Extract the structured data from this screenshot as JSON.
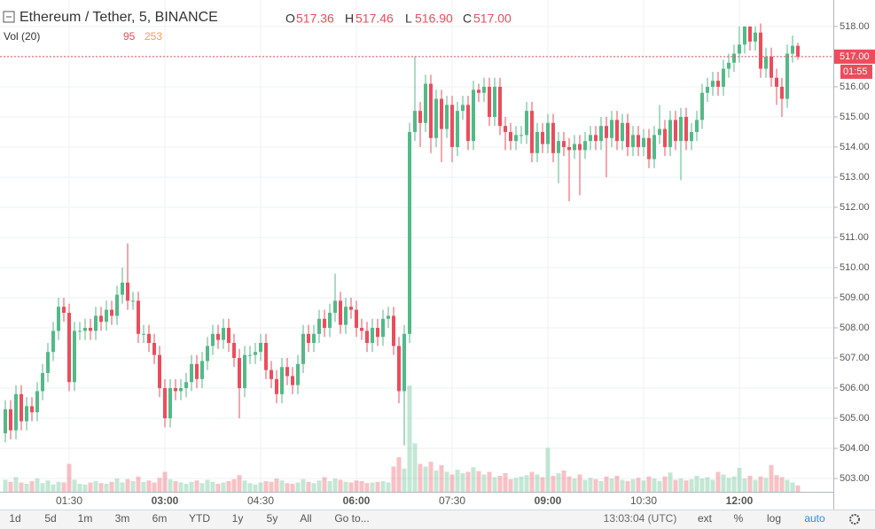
{
  "header": {
    "symbol": "Ethereum / Tether, 5, BINANCE",
    "open_label": "O",
    "open": "517.36",
    "high_label": "H",
    "high": "517.46",
    "low_label": "L",
    "low": "516.90",
    "close_label": "C",
    "close": "517.00",
    "volume_title": "Vol (20)",
    "volume_last": "95",
    "volume_ma": "253"
  },
  "toolbar": [
    "1d",
    "5d",
    "1m",
    "3m",
    "6m",
    "YTD",
    "1y",
    "5y",
    "All",
    "Go to...",
    "13:03:04 (UTC)",
    "ext",
    "%",
    "log",
    "auto"
  ],
  "chart_data": {
    "type": "candlestick",
    "x": [
      "00:30",
      "00:35",
      "00:40",
      "00:45",
      "00:50",
      "00:55",
      "01:00",
      "01:05",
      "01:10",
      "01:15",
      "01:20",
      "01:25",
      "01:30",
      "01:35",
      "01:40",
      "01:45",
      "01:50",
      "01:55",
      "02:00",
      "02:05",
      "02:10",
      "02:15",
      "02:20",
      "02:25",
      "02:30",
      "02:35",
      "02:40",
      "02:45",
      "02:50",
      "02:55",
      "03:00",
      "03:05",
      "03:10",
      "03:15",
      "03:20",
      "03:25",
      "03:30",
      "03:35",
      "03:40",
      "03:45",
      "03:50",
      "03:55",
      "04:00",
      "04:05",
      "04:10",
      "04:15",
      "04:20",
      "04:25",
      "04:30",
      "04:35",
      "04:40",
      "04:45",
      "04:50",
      "04:55",
      "05:00",
      "05:05",
      "05:10",
      "05:15",
      "05:20",
      "05:25",
      "05:30",
      "05:35",
      "05:40",
      "05:45",
      "05:50",
      "05:55",
      "06:00",
      "06:05",
      "06:10",
      "06:15",
      "06:20",
      "06:25",
      "06:30",
      "06:35",
      "06:40",
      "06:45",
      "06:50",
      "06:55",
      "07:00",
      "07:05",
      "07:10",
      "07:15",
      "07:20",
      "07:25",
      "07:30",
      "07:35",
      "07:40",
      "07:45",
      "07:50",
      "07:55",
      "08:00",
      "08:05",
      "08:10",
      "08:15",
      "08:20",
      "08:25",
      "08:30",
      "08:35",
      "08:40",
      "08:45",
      "08:50",
      "08:55",
      "09:00",
      "09:05",
      "09:10",
      "09:15",
      "09:20",
      "09:25",
      "09:30",
      "09:35",
      "09:40",
      "09:45",
      "09:50",
      "09:55",
      "10:00",
      "10:05",
      "10:10",
      "10:15",
      "10:20",
      "10:25",
      "10:30",
      "10:35",
      "10:40",
      "10:45",
      "10:50",
      "10:55",
      "11:00",
      "11:05",
      "11:10",
      "11:15",
      "11:20",
      "11:25",
      "11:30",
      "11:35",
      "11:40",
      "11:45",
      "11:50",
      "11:55",
      "12:00",
      "12:05",
      "12:10",
      "12:15",
      "12:20",
      "12:25",
      "12:30",
      "12:35",
      "12:40",
      "12:45",
      "12:50",
      "12:55"
    ],
    "open": [
      504.5,
      505.3,
      504.6,
      505.8,
      504.9,
      505.4,
      505.2,
      505.9,
      506.5,
      507.2,
      507.9,
      508.7,
      508.5,
      506.2,
      507.9,
      507.9,
      508.0,
      507.9,
      508.4,
      508.2,
      508.6,
      508.4,
      509.1,
      509.5,
      508.9,
      508.9,
      507.8,
      507.8,
      507.5,
      507.1,
      506.0,
      505.0,
      506.0,
      505.9,
      506.0,
      506.2,
      506.8,
      506.3,
      506.9,
      507.4,
      507.8,
      507.6,
      508.0,
      507.5,
      507.0,
      506.0,
      507.1,
      507.1,
      507.2,
      507.5,
      506.6,
      506.3,
      505.8,
      506.7,
      506.4,
      506.1,
      506.8,
      507.8,
      507.5,
      507.8,
      508.3,
      508.0,
      508.5,
      508.9,
      508.1,
      508.7,
      508.6,
      508.0,
      507.9,
      507.5,
      508.0,
      507.7,
      508.3,
      508.4,
      507.4,
      505.9,
      507.8,
      514.5,
      515.2,
      514.8,
      516.1,
      514.3,
      515.6,
      514.6,
      515.4,
      514.0,
      515.2,
      515.4,
      514.2,
      515.9,
      515.8,
      516.0,
      515.0,
      516.0,
      514.7,
      514.5,
      514.2,
      514.4,
      514.4,
      515.2,
      513.8,
      514.5,
      514.1,
      514.8,
      513.8,
      514.2,
      514.0,
      513.9,
      514.1,
      513.9,
      514.2,
      514.4,
      514.2,
      514.7,
      514.3,
      514.9,
      514.2,
      514.8,
      514.0,
      514.4,
      514.0,
      514.3,
      513.6,
      514.4,
      514.6,
      514.0,
      514.9,
      514.2,
      515.0,
      514.2,
      514.5,
      514.9,
      515.8,
      516.0,
      516.2,
      516.0,
      516.6,
      516.8,
      517.1,
      517.4,
      518.0,
      517.5,
      517.8,
      516.6,
      517.0,
      516.3,
      516.0,
      515.6,
      517.1,
      517.36
    ],
    "high": [
      505.6,
      505.6,
      506.1,
      506.1,
      505.7,
      505.7,
      506.2,
      506.8,
      507.5,
      508.2,
      509.0,
      509.0,
      508.8,
      508.2,
      508.2,
      508.3,
      508.3,
      508.7,
      508.7,
      508.9,
      508.9,
      509.4,
      510.0,
      510.8,
      509.2,
      509.2,
      508.1,
      508.1,
      507.8,
      507.4,
      506.3,
      506.3,
      506.3,
      506.3,
      506.5,
      507.1,
      507.1,
      507.2,
      507.7,
      508.1,
      508.1,
      508.3,
      508.3,
      507.8,
      507.3,
      507.4,
      507.4,
      507.5,
      507.8,
      507.8,
      506.9,
      506.6,
      507.0,
      507.0,
      506.7,
      507.1,
      508.1,
      508.1,
      508.1,
      508.6,
      508.6,
      508.8,
      509.8,
      509.2,
      509.0,
      509.0,
      508.9,
      508.3,
      508.2,
      508.3,
      508.3,
      508.6,
      508.7,
      508.7,
      507.7,
      508.1,
      514.8,
      517.0,
      515.5,
      516.4,
      516.4,
      515.9,
      515.9,
      515.7,
      515.7,
      515.5,
      515.7,
      515.7,
      516.2,
      516.1,
      516.3,
      516.3,
      516.3,
      516.3,
      515.0,
      514.8,
      514.7,
      514.7,
      515.5,
      515.5,
      514.8,
      514.8,
      515.1,
      515.1,
      514.5,
      514.5,
      514.3,
      514.4,
      514.4,
      514.5,
      514.7,
      514.7,
      515.0,
      515.0,
      515.2,
      515.2,
      515.1,
      515.1,
      514.7,
      514.7,
      514.6,
      514.6,
      514.7,
      515.4,
      514.9,
      515.2,
      515.2,
      515.3,
      515.3,
      514.8,
      515.2,
      516.1,
      516.3,
      516.5,
      516.5,
      516.9,
      517.1,
      517.4,
      518.0,
      518.0,
      518.0,
      518.0,
      518.1,
      517.3,
      517.3,
      516.6,
      516.3,
      517.4,
      517.7,
      517.46
    ],
    "low": [
      504.2,
      504.3,
      504.3,
      504.6,
      504.6,
      504.9,
      504.9,
      505.6,
      506.2,
      506.9,
      507.6,
      508.2,
      505.9,
      505.9,
      507.6,
      507.6,
      507.6,
      507.6,
      507.9,
      507.9,
      508.1,
      508.1,
      508.8,
      508.6,
      508.6,
      507.5,
      507.5,
      507.2,
      506.8,
      505.7,
      504.7,
      504.7,
      505.6,
      505.6,
      505.7,
      505.9,
      506.0,
      506.0,
      506.6,
      507.1,
      507.3,
      507.3,
      507.2,
      506.7,
      505.0,
      505.7,
      506.8,
      506.8,
      506.9,
      506.3,
      506.0,
      505.5,
      505.5,
      506.1,
      505.8,
      505.8,
      506.5,
      507.2,
      507.2,
      507.5,
      507.7,
      507.7,
      508.2,
      507.8,
      507.8,
      508.3,
      507.7,
      507.6,
      507.2,
      507.2,
      507.4,
      507.4,
      508.0,
      507.1,
      505.5,
      504.1,
      507.5,
      514.2,
      514.0,
      514.5,
      513.8,
      514.0,
      513.5,
      514.3,
      513.5,
      513.7,
      514.9,
      513.9,
      513.9,
      515.5,
      515.5,
      514.7,
      514.7,
      514.4,
      513.9,
      513.9,
      513.9,
      514.1,
      514.1,
      513.5,
      513.5,
      513.8,
      513.8,
      513.5,
      512.8,
      513.7,
      512.2,
      513.6,
      512.4,
      513.6,
      513.9,
      513.9,
      513.9,
      513.0,
      514.0,
      513.9,
      513.9,
      513.7,
      513.7,
      513.7,
      513.7,
      513.3,
      513.3,
      514.1,
      513.7,
      513.7,
      513.9,
      512.9,
      513.9,
      513.9,
      514.2,
      514.6,
      515.5,
      515.7,
      515.7,
      515.7,
      516.3,
      516.5,
      516.8,
      517.1,
      517.2,
      517.2,
      516.3,
      516.3,
      516.0,
      515.4,
      515.0,
      515.3,
      516.8,
      516.9
    ],
    "close": [
      505.3,
      504.6,
      505.8,
      504.9,
      505.4,
      505.2,
      505.9,
      506.5,
      507.2,
      507.9,
      508.7,
      508.5,
      506.2,
      507.9,
      507.9,
      508.0,
      507.9,
      508.4,
      508.2,
      508.6,
      508.4,
      509.1,
      509.5,
      508.9,
      508.9,
      507.8,
      507.8,
      507.5,
      507.1,
      506.0,
      505.0,
      506.0,
      505.9,
      506.0,
      506.2,
      506.8,
      506.3,
      506.9,
      507.4,
      507.8,
      507.6,
      508.0,
      507.5,
      507.0,
      506.0,
      507.1,
      507.1,
      507.2,
      507.5,
      506.6,
      506.3,
      505.8,
      506.7,
      506.4,
      506.1,
      506.8,
      507.8,
      507.5,
      507.8,
      508.3,
      508.0,
      508.5,
      508.9,
      508.1,
      508.7,
      508.6,
      508.0,
      507.9,
      507.5,
      508.0,
      507.7,
      508.3,
      508.4,
      507.4,
      505.9,
      507.8,
      514.5,
      515.2,
      514.8,
      516.1,
      514.3,
      515.6,
      514.6,
      515.4,
      514.0,
      515.2,
      515.4,
      514.2,
      515.9,
      515.8,
      516.0,
      515.0,
      516.0,
      514.7,
      514.5,
      514.2,
      514.4,
      514.4,
      515.2,
      513.8,
      514.5,
      514.1,
      514.8,
      513.8,
      514.2,
      514.0,
      513.9,
      514.1,
      513.9,
      514.2,
      514.4,
      514.2,
      514.7,
      514.3,
      514.9,
      514.2,
      514.8,
      514.0,
      514.4,
      514.0,
      514.3,
      513.6,
      514.4,
      514.6,
      514.0,
      514.9,
      514.2,
      515.0,
      514.2,
      514.5,
      514.9,
      515.8,
      516.0,
      516.2,
      516.0,
      516.6,
      516.8,
      517.1,
      517.4,
      518.0,
      517.5,
      517.8,
      516.6,
      517.0,
      516.3,
      516.0,
      515.6,
      517.1,
      517.36,
      517.0
    ],
    "volume": [
      180,
      150,
      220,
      140,
      120,
      160,
      200,
      130,
      170,
      110,
      150,
      140,
      420,
      180,
      120,
      110,
      140,
      160,
      130,
      120,
      150,
      200,
      140,
      190,
      160,
      230,
      150,
      170,
      140,
      210,
      300,
      190,
      160,
      140,
      120,
      150,
      170,
      130,
      180,
      150,
      120,
      140,
      160,
      190,
      250,
      170,
      130,
      110,
      140,
      160,
      150,
      200,
      170,
      130,
      120,
      140,
      190,
      150,
      130,
      170,
      220,
      160,
      200,
      180,
      150,
      140,
      170,
      160,
      130,
      140,
      150,
      160,
      140,
      380,
      520,
      350,
      1600,
      730,
      420,
      380,
      450,
      320,
      400,
      300,
      260,
      330,
      280,
      300,
      370,
      310,
      260,
      300,
      220,
      240,
      280,
      190,
      210,
      230,
      250,
      300,
      260,
      220,
      660,
      240,
      280,
      320,
      230,
      200,
      260,
      180,
      210,
      190,
      160,
      230,
      200,
      240,
      180,
      160,
      190,
      210,
      170,
      230,
      200,
      160,
      230,
      290,
      180,
      200,
      170,
      190,
      240,
      200,
      220,
      180,
      300,
      260,
      210,
      230,
      360,
      200,
      240,
      180,
      230,
      210,
      400,
      250,
      220,
      180,
      140,
      95
    ],
    "ylim": [
      502.56,
      518.88
    ],
    "yticks": [
      {
        "value": 503,
        "label": "503.00"
      },
      {
        "value": 504,
        "label": "504.00"
      },
      {
        "value": 505,
        "label": "505.00"
      },
      {
        "value": 506,
        "label": "506.00"
      },
      {
        "value": 507,
        "label": "507.00"
      },
      {
        "value": 508,
        "label": "508.00"
      },
      {
        "value": 509,
        "label": "509.00"
      },
      {
        "value": 510,
        "label": "510.00"
      },
      {
        "value": 511,
        "label": "511.00"
      },
      {
        "value": 512,
        "label": "512.00"
      },
      {
        "value": 513,
        "label": "513.00"
      },
      {
        "value": 514,
        "label": "514.00"
      },
      {
        "value": 515,
        "label": "515.00"
      },
      {
        "value": 516,
        "label": "516.00"
      },
      {
        "value": 517,
        "label": "517.00"
      },
      {
        "value": 518,
        "label": "518.00"
      }
    ],
    "xticks": [
      {
        "label": "01:30",
        "bold": false
      },
      {
        "label": "03:00",
        "bold": true
      },
      {
        "label": "04:30",
        "bold": false
      },
      {
        "label": "06:00",
        "bold": true
      },
      {
        "label": "07:30",
        "bold": false
      },
      {
        "label": "09:00",
        "bold": true
      },
      {
        "label": "10:30",
        "bold": false
      },
      {
        "label": "12:00",
        "bold": true
      }
    ],
    "volume_lim": [
      0,
      2000
    ],
    "up_color": "#53b987",
    "down_color": "#eb4d5c",
    "grid": true,
    "last_price": {
      "value": 517,
      "label": "517.00"
    },
    "countdown": "01:55"
  }
}
